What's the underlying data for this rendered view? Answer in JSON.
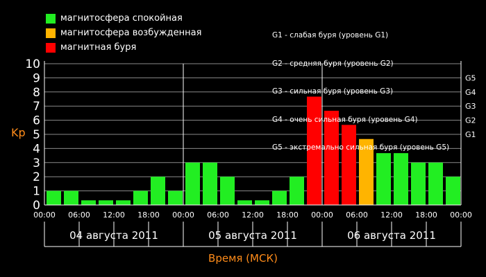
{
  "legend": [
    {
      "label": "магнитосфера спокойная",
      "color": "#22ee22"
    },
    {
      "label": "магнитосфера возбужденная",
      "color": "#ffb400"
    },
    {
      "label": "магнитная буря",
      "color": "#ff0000"
    }
  ],
  "storm_levels": [
    "G1 - слабая буря (уровень G1)",
    "G2 - средняя буря (уровень G2)",
    "G3 - сильная буря (уровень G3)",
    "G4 - очень сильная буря (уровень G4)",
    "G5 - экстремально сильная буря (уровень G5)"
  ],
  "chart_data": {
    "type": "bar",
    "ylabel": "Kp",
    "xlabel": "Время (МСК)",
    "ylim": [
      0,
      10
    ],
    "yticks": [
      0,
      1,
      2,
      3,
      4,
      5,
      6,
      7,
      8,
      9,
      10
    ],
    "right_ticks": [
      {
        "label": "G1",
        "value": 5
      },
      {
        "label": "G2",
        "value": 6
      },
      {
        "label": "G3",
        "value": 7
      },
      {
        "label": "G4",
        "value": 8
      },
      {
        "label": "G5",
        "value": 9
      }
    ],
    "time_ticks": [
      "00:00",
      "06:00",
      "12:00",
      "18:00",
      "00:00",
      "06:00",
      "12:00",
      "18:00",
      "00:00",
      "06:00",
      "12:00",
      "18:00",
      "00:00"
    ],
    "days": [
      "04 августа 2011",
      "05 августа 2011",
      "06 августа 2011"
    ],
    "values": [
      1,
      1,
      0.33,
      0.33,
      0.33,
      1,
      2,
      1,
      3,
      3,
      2,
      0.33,
      0.33,
      1,
      2,
      7.67,
      6.67,
      5.67,
      4.67,
      3.67,
      3.67,
      3,
      3,
      2
    ],
    "colors": {
      "quiet": "#22ee22",
      "active": "#ffb400",
      "storm": "#ff0000"
    },
    "grid": true
  }
}
